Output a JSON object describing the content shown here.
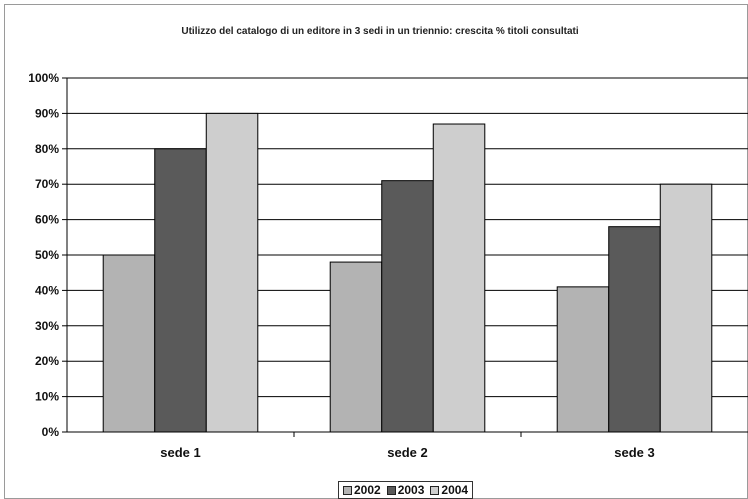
{
  "chart_data": {
    "type": "bar",
    "title": "Utilizzo del catalogo di un editore in 3 sedi in un triennio: crescita % titoli consultati",
    "xlabel": "",
    "ylabel": "",
    "categories": [
      "sede 1",
      "sede 2",
      "sede 3"
    ],
    "series": [
      {
        "name": "2002",
        "values": [
          50,
          48,
          41
        ],
        "color": "#b3b3b3"
      },
      {
        "name": "2003",
        "values": [
          80,
          71,
          58
        ],
        "color": "#5a5a5a"
      },
      {
        "name": "2004",
        "values": [
          90,
          87,
          70
        ],
        "color": "#cecece"
      }
    ],
    "ylim": [
      0,
      100
    ],
    "yticks": [
      "0%",
      "10%",
      "20%",
      "30%",
      "40%",
      "50%",
      "60%",
      "70%",
      "80%",
      "90%",
      "100%"
    ],
    "grid": true,
    "legend_position": "bottom"
  }
}
